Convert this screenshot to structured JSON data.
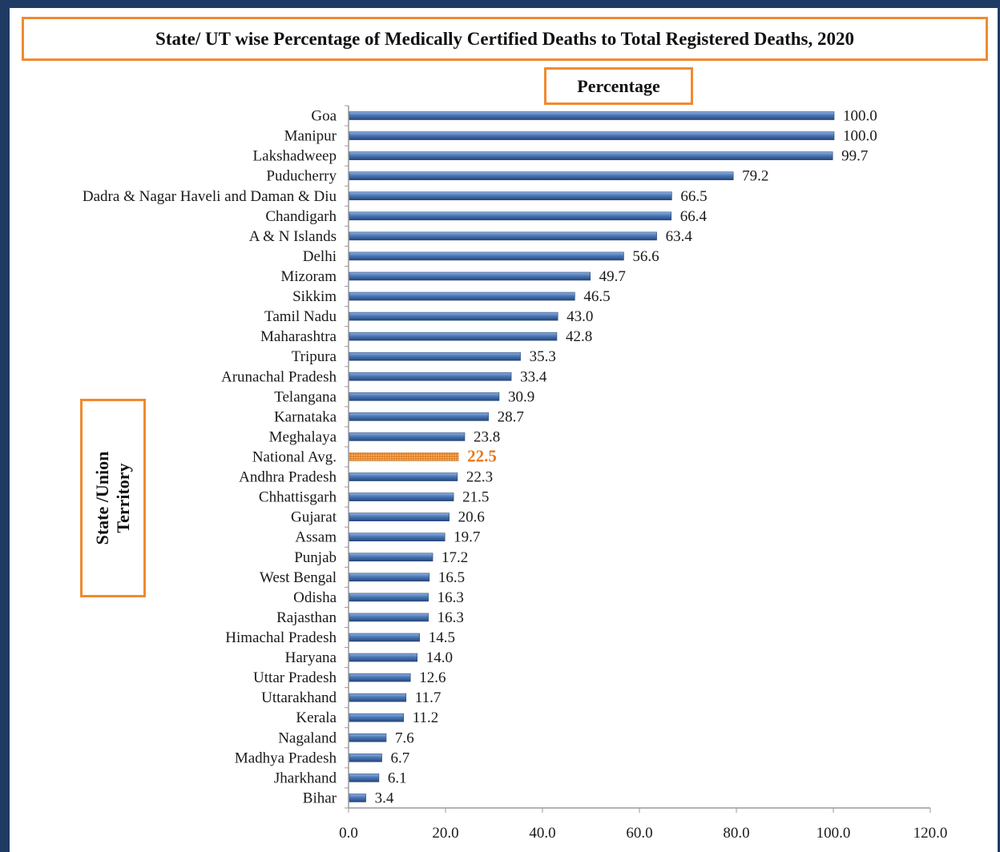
{
  "chart_data": {
    "type": "bar",
    "orientation": "horizontal",
    "title": "State/ UT wise Percentage of Medically Certified Deaths to Total Registered Deaths, 2020",
    "xlabel": "Percentage",
    "ylabel": [
      "State /Union",
      "Territory"
    ],
    "xlim": [
      0,
      120
    ],
    "xticks": [
      "0.0",
      "20.0",
      "40.0",
      "60.0",
      "80.0",
      "100.0",
      "120.0"
    ],
    "grid": false,
    "highlight_category": "National Avg.",
    "colors": {
      "bar": "#4a78b8",
      "bar_dark": "#27477a",
      "highlight": "#e3862c",
      "highlight_label": "#e8791f"
    },
    "categories": [
      "Goa",
      "Manipur",
      "Lakshadweep",
      "Puducherry",
      "Dadra & Nagar Haveli and Daman & Diu",
      "Chandigarh",
      "A & N Islands",
      "Delhi",
      "Mizoram",
      "Sikkim",
      "Tamil Nadu",
      "Maharashtra",
      "Tripura",
      "Arunachal Pradesh",
      "Telangana",
      "Karnataka",
      "Meghalaya",
      "National Avg.",
      "Andhra Pradesh",
      "Chhattisgarh",
      "Gujarat",
      "Assam",
      "Punjab",
      "West Bengal",
      "Odisha",
      "Rajasthan",
      "Himachal Pradesh",
      "Haryana",
      "Uttar Pradesh",
      "Uttarakhand",
      "Kerala",
      "Nagaland",
      "Madhya Pradesh",
      "Jharkhand",
      "Bihar"
    ],
    "values": [
      100.0,
      100.0,
      99.7,
      79.2,
      66.5,
      66.4,
      63.4,
      56.6,
      49.7,
      46.5,
      43.0,
      42.8,
      35.3,
      33.4,
      30.9,
      28.7,
      23.8,
      22.5,
      22.3,
      21.5,
      20.6,
      19.7,
      17.2,
      16.5,
      16.3,
      16.3,
      14.5,
      14.0,
      12.6,
      11.7,
      11.2,
      7.6,
      6.7,
      6.1,
      3.4
    ],
    "value_labels": [
      "100.0",
      "100.0",
      "99.7",
      "79.2",
      "66.5",
      "66.4",
      "63.4",
      "56.6",
      "49.7",
      "46.5",
      "43.0",
      "42.8",
      "35.3",
      "33.4",
      "30.9",
      "28.7",
      "23.8",
      "22.5",
      "22.3",
      "21.5",
      "20.6",
      "19.7",
      "17.2",
      "16.5",
      "16.3",
      "16.3",
      "14.5",
      "14.0",
      "12.6",
      "11.7",
      "11.2",
      "7.6",
      "6.7",
      "6.1",
      "3.4"
    ]
  }
}
